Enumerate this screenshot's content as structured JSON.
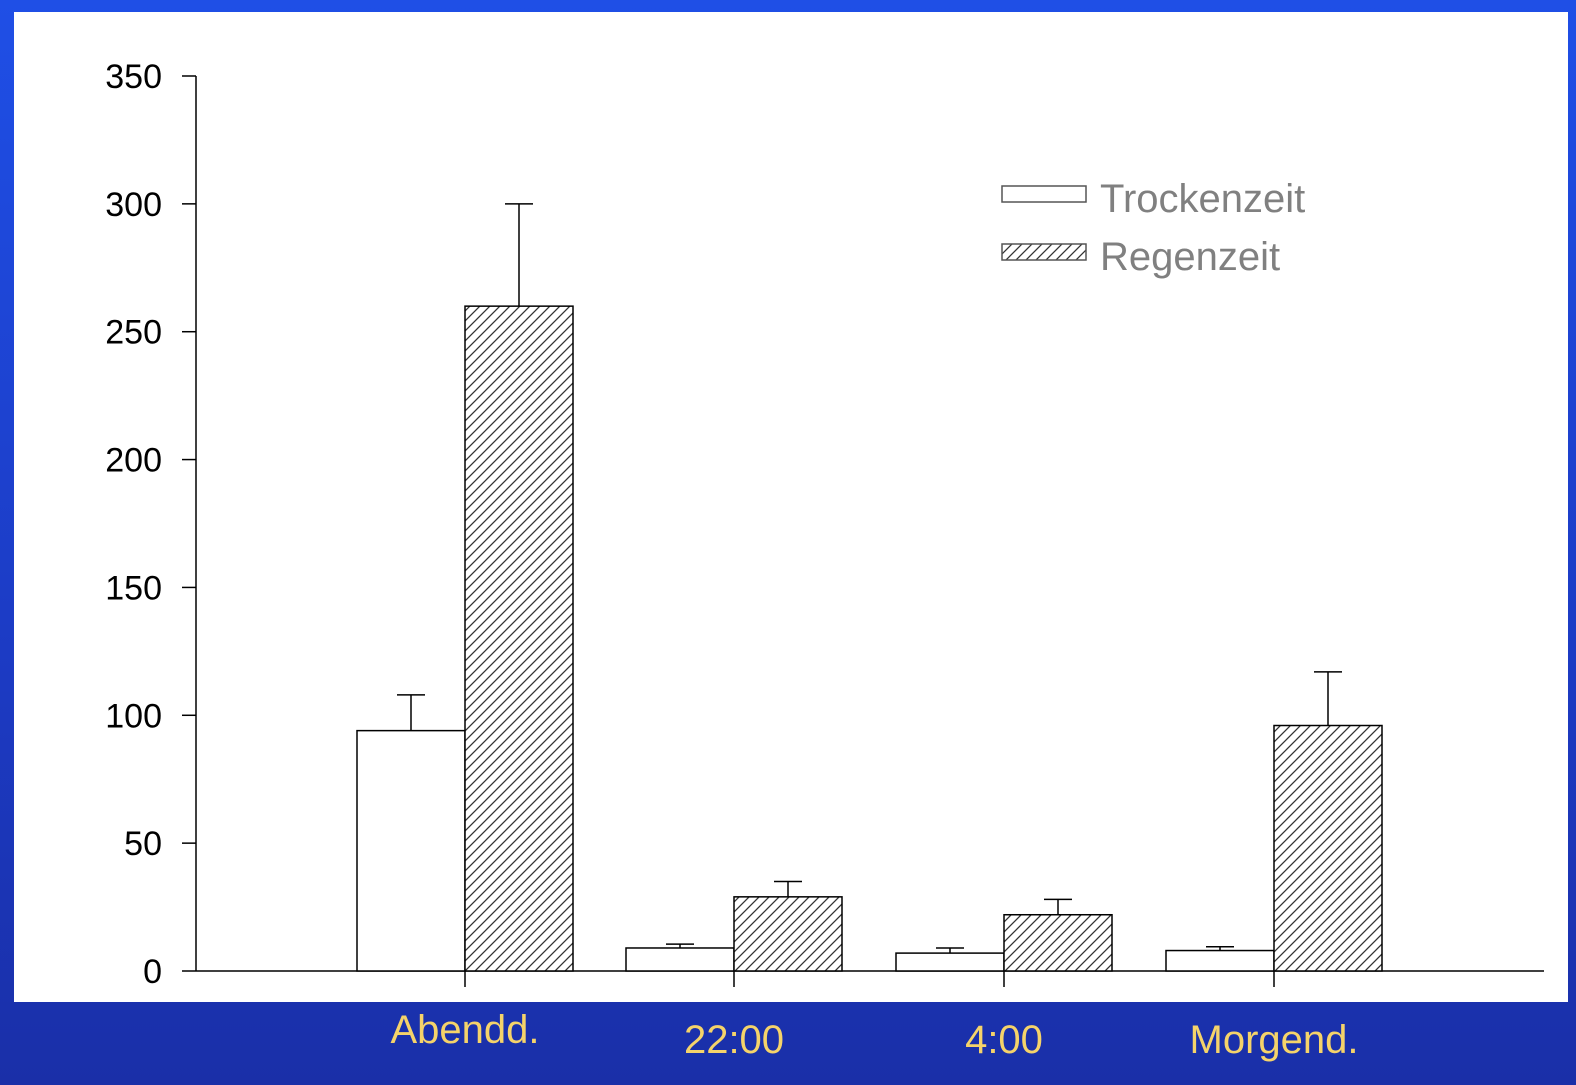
{
  "chart_data": {
    "type": "bar",
    "categories": [
      "Abendd.",
      "22:00",
      "4:00",
      "Morgend."
    ],
    "series": [
      {
        "name": "Trockenzeit",
        "values": [
          94,
          9,
          7,
          8
        ],
        "errors": [
          14,
          1.5,
          2,
          1.5
        ],
        "pattern": "none"
      },
      {
        "name": "Regenzeit",
        "values": [
          260,
          29,
          22,
          96
        ],
        "errors": [
          40,
          6,
          6,
          21
        ],
        "pattern": "hatch"
      }
    ],
    "title": "",
    "xlabel": "",
    "ylabel": "",
    "ylim": [
      0,
      350
    ],
    "yticks": [
      0,
      50,
      100,
      150,
      200,
      250,
      300,
      350
    ],
    "grid": false,
    "legend_position": "top-right"
  },
  "colors": {
    "background": "#1f4fe6",
    "plot_background": "#ffffff",
    "axis": "#000000",
    "category_label": "#f5d36a",
    "legend_text": "#808080"
  }
}
